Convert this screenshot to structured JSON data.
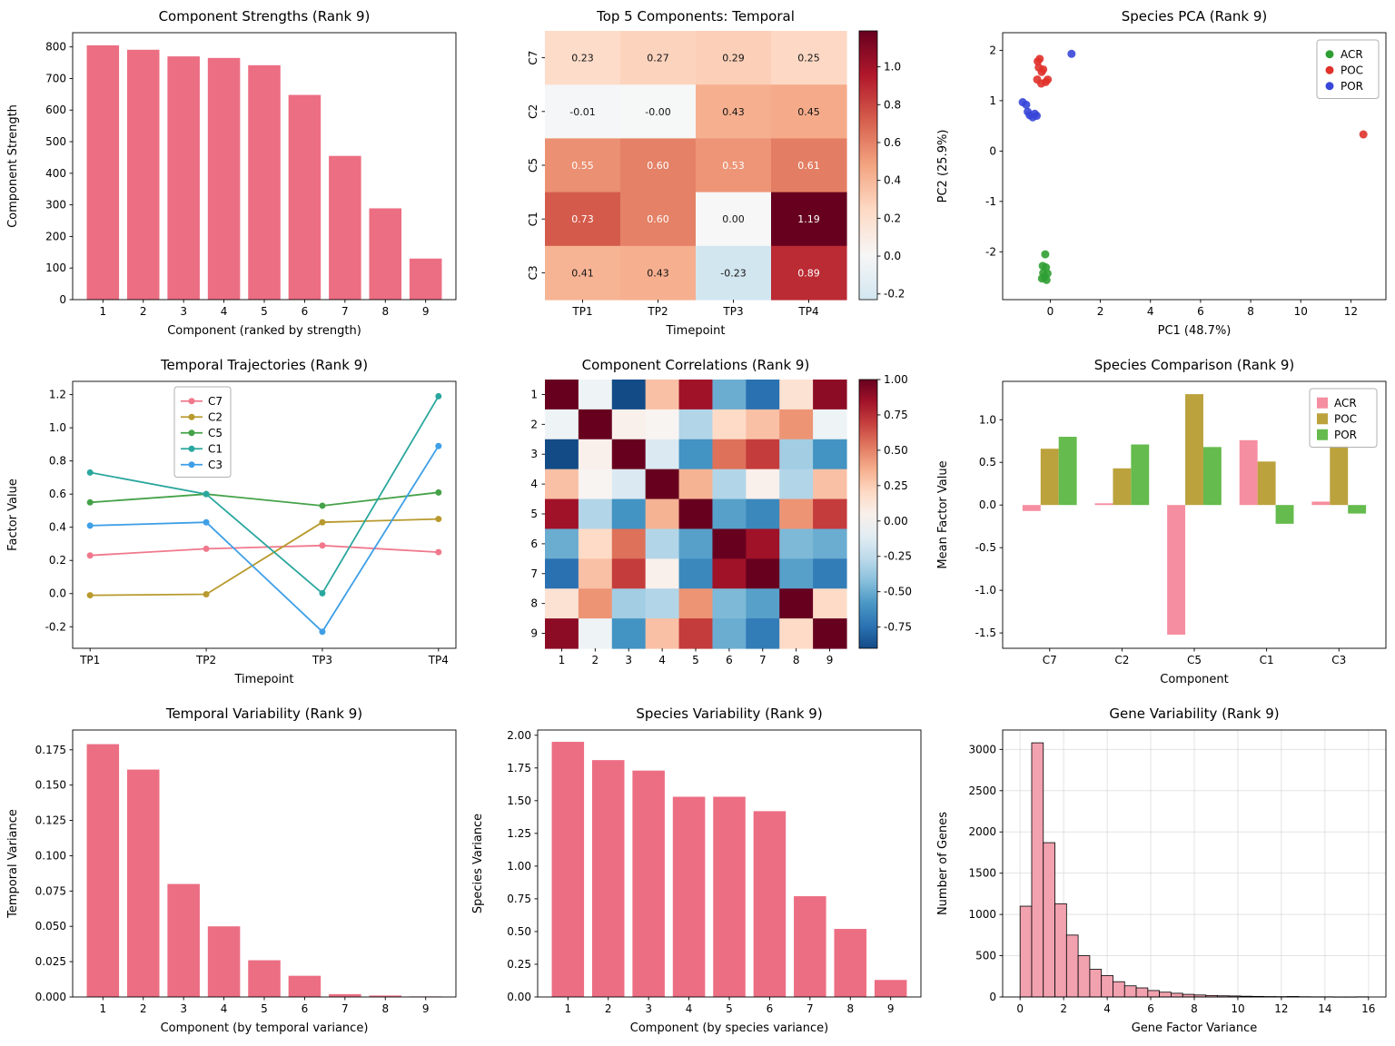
{
  "figure": {
    "background": "#ffffff"
  },
  "chart_data": [
    {
      "id": "component-strengths",
      "type": "bar",
      "render": "bar",
      "title": "Component Strengths (Rank 9)",
      "xlabel": "Component (ranked by strength)",
      "ylabel": "Component Strength",
      "categories": [
        "1",
        "2",
        "3",
        "4",
        "5",
        "6",
        "7",
        "8",
        "9"
      ],
      "values": [
        805,
        791,
        770,
        765,
        742,
        648,
        455,
        289,
        130
      ],
      "bar_color": "#ec6e83",
      "ylim": [
        0,
        845
      ],
      "yticks": [
        0,
        100,
        200,
        300,
        400,
        500,
        600,
        700,
        800
      ],
      "ytick_labels": [
        "0",
        "100",
        "200",
        "300",
        "400",
        "500",
        "600",
        "700",
        "800"
      ],
      "grid": false
    },
    {
      "id": "temporal-heatmap",
      "type": "heatmap",
      "render": "heatmap",
      "title": "Top 5 Components: Temporal",
      "xlabel": "Timepoint",
      "rows": [
        "C7",
        "C2",
        "C5",
        "C1",
        "C3"
      ],
      "cols": [
        "TP1",
        "TP2",
        "TP3",
        "TP4"
      ],
      "values": [
        [
          0.23,
          0.27,
          0.29,
          0.25
        ],
        [
          -0.01,
          -0.004,
          0.43,
          0.45
        ],
        [
          0.55,
          0.6,
          0.53,
          0.61
        ],
        [
          0.73,
          0.6,
          0.002,
          1.19
        ],
        [
          0.41,
          0.43,
          -0.23,
          0.89
        ]
      ],
      "annot_labels": [
        [
          "0.23",
          "0.27",
          "0.29",
          "0.25"
        ],
        [
          "-0.01",
          "-0.00",
          "0.43",
          "0.45"
        ],
        [
          "0.55",
          "0.60",
          "0.53",
          "0.61"
        ],
        [
          "0.73",
          "0.60",
          "0.00",
          "1.19"
        ],
        [
          "0.41",
          "0.43",
          "-0.23",
          "0.89"
        ]
      ],
      "rows_rotated": true,
      "colormap": "RdBu_r",
      "colorbar_ticks": [
        -0.2,
        0.0,
        0.2,
        0.4,
        0.6,
        0.8,
        1.0
      ],
      "colorbar_tick_labels": [
        "-0.2",
        "0.0",
        "0.2",
        "0.4",
        "0.6",
        "0.8",
        "1.0"
      ]
    },
    {
      "id": "species-pca",
      "type": "scatter",
      "render": "scatter",
      "title": "Species PCA (Rank 9)",
      "xlabel": "PC1 (48.7%)",
      "ylabel": "PC2 (25.9%)",
      "xlim": [
        -1.9,
        13.4
      ],
      "ylim": [
        -2.95,
        2.35
      ],
      "xticks": [
        0,
        2,
        4,
        6,
        8,
        10,
        12
      ],
      "xtick_labels": [
        "0",
        "2",
        "4",
        "6",
        "8",
        "10",
        "12"
      ],
      "yticks": [
        -2,
        -1,
        0,
        1,
        2
      ],
      "ytick_labels": [
        "-2",
        "-1",
        "0",
        "1",
        "2"
      ],
      "legend_position": "upper right",
      "series": [
        {
          "name": "ACR",
          "color": "#2f9e32",
          "points": [
            [
              -0.2,
              -2.05
            ],
            [
              -0.3,
              -2.28
            ],
            [
              -0.17,
              -2.31
            ],
            [
              -0.28,
              -2.42
            ],
            [
              -0.11,
              -2.43
            ],
            [
              -0.23,
              -2.5
            ],
            [
              -0.33,
              -2.53
            ],
            [
              -0.15,
              -2.56
            ]
          ]
        },
        {
          "name": "POC",
          "color": "#e0312a",
          "points": [
            [
              -0.5,
              1.78
            ],
            [
              -0.42,
              1.83
            ],
            [
              -0.46,
              1.66
            ],
            [
              -0.28,
              1.62
            ],
            [
              -0.34,
              1.57
            ],
            [
              -0.52,
              1.42
            ],
            [
              -0.36,
              1.34
            ],
            [
              -0.18,
              1.37
            ],
            [
              -0.1,
              1.42
            ],
            [
              12.5,
              0.33
            ]
          ]
        },
        {
          "name": "POR",
          "color": "#3746d8",
          "points": [
            [
              -1.1,
              0.97
            ],
            [
              -0.96,
              0.92
            ],
            [
              -0.9,
              0.78
            ],
            [
              -0.82,
              0.71
            ],
            [
              -0.7,
              0.67
            ],
            [
              -0.62,
              0.74
            ],
            [
              -0.54,
              0.7
            ],
            [
              0.85,
              1.93
            ]
          ]
        }
      ]
    },
    {
      "id": "temporal-trajectories",
      "type": "line",
      "render": "line",
      "title": "Temporal Trajectories (Rank 9)",
      "xlabel": "Timepoint",
      "ylabel": "Factor Value",
      "categories": [
        "TP1",
        "TP2",
        "TP3",
        "TP4"
      ],
      "ylim": [
        -0.33,
        1.28
      ],
      "yticks": [
        -0.2,
        0.0,
        0.2,
        0.4,
        0.6,
        0.8,
        1.0,
        1.2
      ],
      "ytick_labels": [
        "-0.2",
        "0.0",
        "0.2",
        "0.4",
        "0.6",
        "0.8",
        "1.0",
        "1.2"
      ],
      "series": [
        {
          "name": "C7",
          "color": "#f0788c",
          "values": [
            0.23,
            0.27,
            0.29,
            0.25
          ]
        },
        {
          "name": "C2",
          "color": "#b89a2e",
          "values": [
            -0.01,
            -0.004,
            0.43,
            0.45
          ]
        },
        {
          "name": "C5",
          "color": "#45a249",
          "values": [
            0.55,
            0.6,
            0.53,
            0.61
          ]
        },
        {
          "name": "C1",
          "color": "#2aa79e",
          "values": [
            0.73,
            0.6,
            0.002,
            1.19
          ]
        },
        {
          "name": "C3",
          "color": "#3e9fe6",
          "values": [
            0.41,
            0.43,
            -0.23,
            0.89
          ]
        }
      ]
    },
    {
      "id": "component-correlations",
      "type": "heatmap",
      "render": "heatmap",
      "title": "Component Correlations (Rank 9)",
      "rows": [
        "1",
        "2",
        "3",
        "4",
        "5",
        "6",
        "7",
        "8",
        "9"
      ],
      "cols": [
        "1",
        "2",
        "3",
        "4",
        "5",
        "6",
        "7",
        "8",
        "9"
      ],
      "values": [
        [
          1.0,
          -0.05,
          -0.9,
          0.3,
          0.85,
          -0.5,
          -0.75,
          0.15,
          0.9
        ],
        [
          -0.05,
          1.0,
          0.05,
          0.02,
          -0.3,
          0.2,
          0.3,
          0.45,
          -0.05
        ],
        [
          -0.9,
          0.05,
          1.0,
          -0.15,
          -0.6,
          0.55,
          0.7,
          -0.35,
          -0.6
        ],
        [
          0.3,
          0.02,
          -0.15,
          1.0,
          0.35,
          -0.3,
          0.05,
          -0.3,
          0.3
        ],
        [
          0.85,
          -0.3,
          -0.6,
          0.35,
          1.0,
          -0.55,
          -0.65,
          0.45,
          0.7
        ],
        [
          -0.5,
          0.2,
          0.55,
          -0.3,
          -0.55,
          1.0,
          0.85,
          -0.45,
          -0.5
        ],
        [
          -0.75,
          0.3,
          0.7,
          0.05,
          -0.65,
          0.85,
          1.0,
          -0.55,
          -0.7
        ],
        [
          0.15,
          0.45,
          -0.35,
          -0.3,
          0.45,
          -0.45,
          -0.55,
          1.0,
          0.2
        ],
        [
          0.9,
          -0.05,
          -0.6,
          0.3,
          0.7,
          -0.5,
          -0.7,
          0.2,
          1.0
        ]
      ],
      "rows_rotated": false,
      "colormap": "RdBu_r",
      "colorbar_ticks": [
        -0.75,
        -0.5,
        -0.25,
        0.0,
        0.25,
        0.5,
        0.75,
        1.0
      ],
      "colorbar_tick_labels": [
        "-0.75",
        "-0.50",
        "-0.25",
        "0.00",
        "0.25",
        "0.50",
        "0.75",
        "1.00"
      ]
    },
    {
      "id": "species-comparison",
      "type": "bar",
      "render": "grouped_bar",
      "title": "Species Comparison (Rank 9)",
      "xlabel": "Component",
      "ylabel": "Mean Factor Value",
      "categories": [
        "C7",
        "C2",
        "C5",
        "C1",
        "C3"
      ],
      "ylim": [
        -1.68,
        1.45
      ],
      "yticks": [
        -1.5,
        -1.0,
        -0.5,
        0.0,
        0.5,
        1.0
      ],
      "ytick_labels": [
        "-1.5",
        "-1.0",
        "-0.5",
        "0.0",
        "0.5",
        "1.0"
      ],
      "legend_position": "upper right",
      "series": [
        {
          "name": "ACR",
          "color": "#f58ea0",
          "values": [
            -0.07,
            0.02,
            -1.52,
            0.76,
            0.04
          ]
        },
        {
          "name": "POC",
          "color": "#bba23d",
          "values": [
            0.66,
            0.43,
            1.3,
            0.51,
            0.7
          ]
        },
        {
          "name": "POR",
          "color": "#65bb4d",
          "values": [
            0.8,
            0.71,
            0.68,
            -0.22,
            -0.1
          ]
        }
      ]
    },
    {
      "id": "temporal-variability",
      "type": "bar",
      "render": "bar",
      "title": "Temporal Variability (Rank 9)",
      "xlabel": "Component (by temporal variance)",
      "ylabel": "Temporal Variance",
      "categories": [
        "1",
        "2",
        "3",
        "4",
        "5",
        "6",
        "7",
        "8",
        "9"
      ],
      "values": [
        0.179,
        0.161,
        0.08,
        0.05,
        0.026,
        0.015,
        0.002,
        0.001,
        0.0004
      ],
      "bar_color": "#ec6e83",
      "ylim": [
        0,
        0.189
      ],
      "yticks": [
        0,
        0.025,
        0.05,
        0.075,
        0.1,
        0.125,
        0.15,
        0.175
      ],
      "ytick_labels": [
        "0.000",
        "0.025",
        "0.050",
        "0.075",
        "0.100",
        "0.125",
        "0.150",
        "0.175"
      ],
      "grid": false
    },
    {
      "id": "species-variability",
      "type": "bar",
      "render": "bar",
      "title": "Species Variability (Rank 9)",
      "xlabel": "Component (by species variance)",
      "ylabel": "Species Variance",
      "categories": [
        "1",
        "2",
        "3",
        "4",
        "5",
        "6",
        "7",
        "8",
        "9"
      ],
      "values": [
        1.95,
        1.81,
        1.73,
        1.53,
        1.53,
        1.42,
        0.77,
        0.52,
        0.13
      ],
      "bar_color": "#ec6e83",
      "ylim": [
        0,
        2.04
      ],
      "yticks": [
        0,
        0.25,
        0.5,
        0.75,
        1.0,
        1.25,
        1.5,
        1.75,
        2.0
      ],
      "ytick_labels": [
        "0.00",
        "0.25",
        "0.50",
        "0.75",
        "1.00",
        "1.25",
        "1.50",
        "1.75",
        "2.00"
      ],
      "grid": false
    },
    {
      "id": "gene-variability",
      "type": "bar",
      "subtype": "histogram",
      "render": "histogram",
      "title": "Gene Variability (Rank 9)",
      "xlabel": "Gene Factor Variance",
      "ylabel": "Number of Genes",
      "bin_start": 0,
      "bin_width": 0.5333,
      "counts": [
        1100,
        3080,
        1870,
        1130,
        750,
        500,
        335,
        260,
        185,
        135,
        110,
        78,
        58,
        45,
        32,
        24,
        18,
        14,
        12,
        9,
        7,
        5,
        4,
        6,
        3,
        2,
        2,
        1,
        1,
        2
      ],
      "bar_color": "#f2a1af",
      "edge_color": "#000000",
      "xlim": [
        -0.8,
        16.8
      ],
      "xticks": [
        0,
        2,
        4,
        6,
        8,
        10,
        12,
        14,
        16
      ],
      "xtick_labels": [
        "0",
        "2",
        "4",
        "6",
        "8",
        "10",
        "12",
        "14",
        "16"
      ],
      "ylim": [
        0,
        3235
      ],
      "yticks": [
        0,
        500,
        1000,
        1500,
        2000,
        2500,
        3000
      ],
      "ytick_labels": [
        "0",
        "500",
        "1000",
        "1500",
        "2000",
        "2500",
        "3000"
      ],
      "grid": true
    }
  ]
}
